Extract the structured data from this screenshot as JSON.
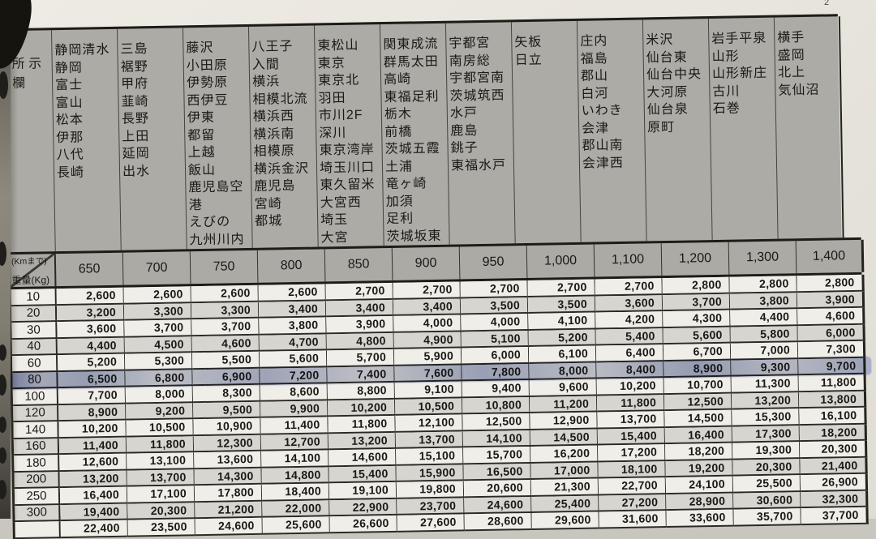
{
  "page": {
    "side_label": "所\n示欄",
    "corner_label_top": "(Kmまで)",
    "corner_label_bottom": "重量(Kg)",
    "page_mark": "2"
  },
  "header_columns": [
    {
      "cities": [
        "静岡清水",
        "静岡",
        "富士",
        "富山",
        "松本",
        "伊那",
        "八代",
        "長崎"
      ]
    },
    {
      "cities": [
        "三島",
        "裾野",
        "甲府",
        "韮崎",
        "長野",
        "上田",
        "延岡",
        "出水"
      ]
    },
    {
      "cities": [
        "藤沢",
        "小田原",
        "伊勢原",
        "西伊豆",
        "伊東",
        "都留",
        "上越",
        "飯山",
        "鹿児島空港",
        "えびの",
        "九州川内"
      ]
    },
    {
      "cities": [
        "八王子",
        "入間",
        "横浜",
        "相模北流",
        "横浜西",
        "横浜南",
        "相模原",
        "横浜金沢",
        "鹿児島",
        "宮崎",
        "都城"
      ]
    },
    {
      "cities": [
        "東松山",
        "東京",
        "東京北",
        "羽田",
        "市川2F",
        "深川",
        "東京湾岸",
        "埼玉川口",
        "東久留米",
        "大宮西",
        "埼玉",
        "大宮"
      ]
    },
    {
      "cities": [
        "関東成流",
        "群馬太田",
        "高崎",
        "東福足利",
        "栃木",
        "前橋",
        "茨城五霞",
        "土浦",
        "竜ヶ崎",
        "加須",
        "足利",
        "茨城坂東"
      ]
    },
    {
      "cities": [
        "宇都宮",
        "南房総",
        "宇都宮南",
        "茨城筑西",
        "水戸",
        "鹿島",
        "銚子",
        "東福水戸"
      ]
    },
    {
      "cities": [
        "矢板",
        "日立"
      ]
    },
    {
      "cities": [
        "庄内",
        "福島",
        "郡山",
        "白河",
        "いわき",
        "会津",
        "郡山南",
        "会津西"
      ]
    },
    {
      "cities": [
        "米沢",
        "仙台東",
        "仙台中央",
        "大河原",
        "仙台泉",
        "原町"
      ]
    },
    {
      "cities": [
        "岩手平泉",
        "山形",
        "山形新庄",
        "古川",
        "石巻"
      ]
    },
    {
      "cities": [
        "横手",
        "盛岡",
        "北上",
        "気仙沼"
      ]
    }
  ],
  "distances": [
    "650",
    "700",
    "750",
    "800",
    "850",
    "900",
    "950",
    "1,000",
    "1,100",
    "1,200",
    "1,300",
    "1,400"
  ],
  "rows": [
    {
      "weight": "10",
      "prices": [
        "2,600",
        "2,600",
        "2,600",
        "2,600",
        "2,700",
        "2,700",
        "2,700",
        "2,700",
        "2,700",
        "2,800",
        "2,800",
        "2,800"
      ]
    },
    {
      "weight": "20",
      "prices": [
        "3,200",
        "3,300",
        "3,300",
        "3,400",
        "3,400",
        "3,400",
        "3,500",
        "3,500",
        "3,600",
        "3,700",
        "3,800",
        "3,900"
      ]
    },
    {
      "weight": "30",
      "prices": [
        "3,600",
        "3,700",
        "3,700",
        "3,800",
        "3,900",
        "4,000",
        "4,000",
        "4,100",
        "4,200",
        "4,300",
        "4,400",
        "4,600"
      ]
    },
    {
      "weight": "40",
      "prices": [
        "4,400",
        "4,500",
        "4,600",
        "4,700",
        "4,800",
        "4,900",
        "5,100",
        "5,200",
        "5,400",
        "5,600",
        "5,800",
        "6,000"
      ]
    },
    {
      "weight": "60",
      "prices": [
        "5,200",
        "5,300",
        "5,500",
        "5,600",
        "5,700",
        "5,900",
        "6,000",
        "6,100",
        "6,400",
        "6,700",
        "7,000",
        "7,300"
      ]
    },
    {
      "weight": "80",
      "prices": [
        "6,500",
        "6,800",
        "6,900",
        "7,200",
        "7,400",
        "7,600",
        "7,800",
        "8,000",
        "8,400",
        "8,900",
        "9,300",
        "9,700"
      ]
    },
    {
      "weight": "100",
      "prices": [
        "7,700",
        "8,000",
        "8,300",
        "8,600",
        "8,800",
        "9,100",
        "9,400",
        "9,600",
        "10,200",
        "10,700",
        "11,300",
        "11,800"
      ]
    },
    {
      "weight": "120",
      "prices": [
        "8,900",
        "9,200",
        "9,500",
        "9,900",
        "10,200",
        "10,500",
        "10,800",
        "11,200",
        "11,800",
        "12,500",
        "13,200",
        "13,800"
      ]
    },
    {
      "weight": "140",
      "prices": [
        "10,200",
        "10,500",
        "10,900",
        "11,400",
        "11,800",
        "12,100",
        "12,500",
        "12,900",
        "13,700",
        "14,500",
        "15,300",
        "16,100"
      ]
    },
    {
      "weight": "160",
      "prices": [
        "11,400",
        "11,800",
        "12,300",
        "12,700",
        "13,200",
        "13,700",
        "14,100",
        "14,500",
        "15,400",
        "16,400",
        "17,300",
        "18,200"
      ]
    },
    {
      "weight": "180",
      "prices": [
        "12,600",
        "13,100",
        "13,600",
        "14,100",
        "14,600",
        "15,100",
        "15,700",
        "16,200",
        "17,200",
        "18,200",
        "19,300",
        "20,300"
      ]
    },
    {
      "weight": "200",
      "prices": [
        "13,200",
        "13,700",
        "14,300",
        "14,800",
        "15,400",
        "15,900",
        "16,500",
        "17,000",
        "18,100",
        "19,200",
        "20,300",
        "21,400"
      ]
    },
    {
      "weight": "250",
      "prices": [
        "16,400",
        "17,100",
        "17,800",
        "18,400",
        "19,100",
        "19,800",
        "20,600",
        "21,300",
        "22,700",
        "24,100",
        "25,500",
        "26,900"
      ]
    },
    {
      "weight": "300",
      "prices": [
        "19,400",
        "20,300",
        "21,200",
        "22,000",
        "22,900",
        "23,700",
        "24,600",
        "25,400",
        "27,200",
        "28,900",
        "30,600",
        "32,300"
      ]
    },
    {
      "weight": "",
      "prices": [
        "22,400",
        "23,500",
        "24,600",
        "25,600",
        "26,600",
        "27,600",
        "28,600",
        "29,600",
        "31,600",
        "33,600",
        "35,700",
        "37,700"
      ]
    }
  ],
  "highlight": {
    "row_weight": "80",
    "color": "#5a72c0"
  }
}
